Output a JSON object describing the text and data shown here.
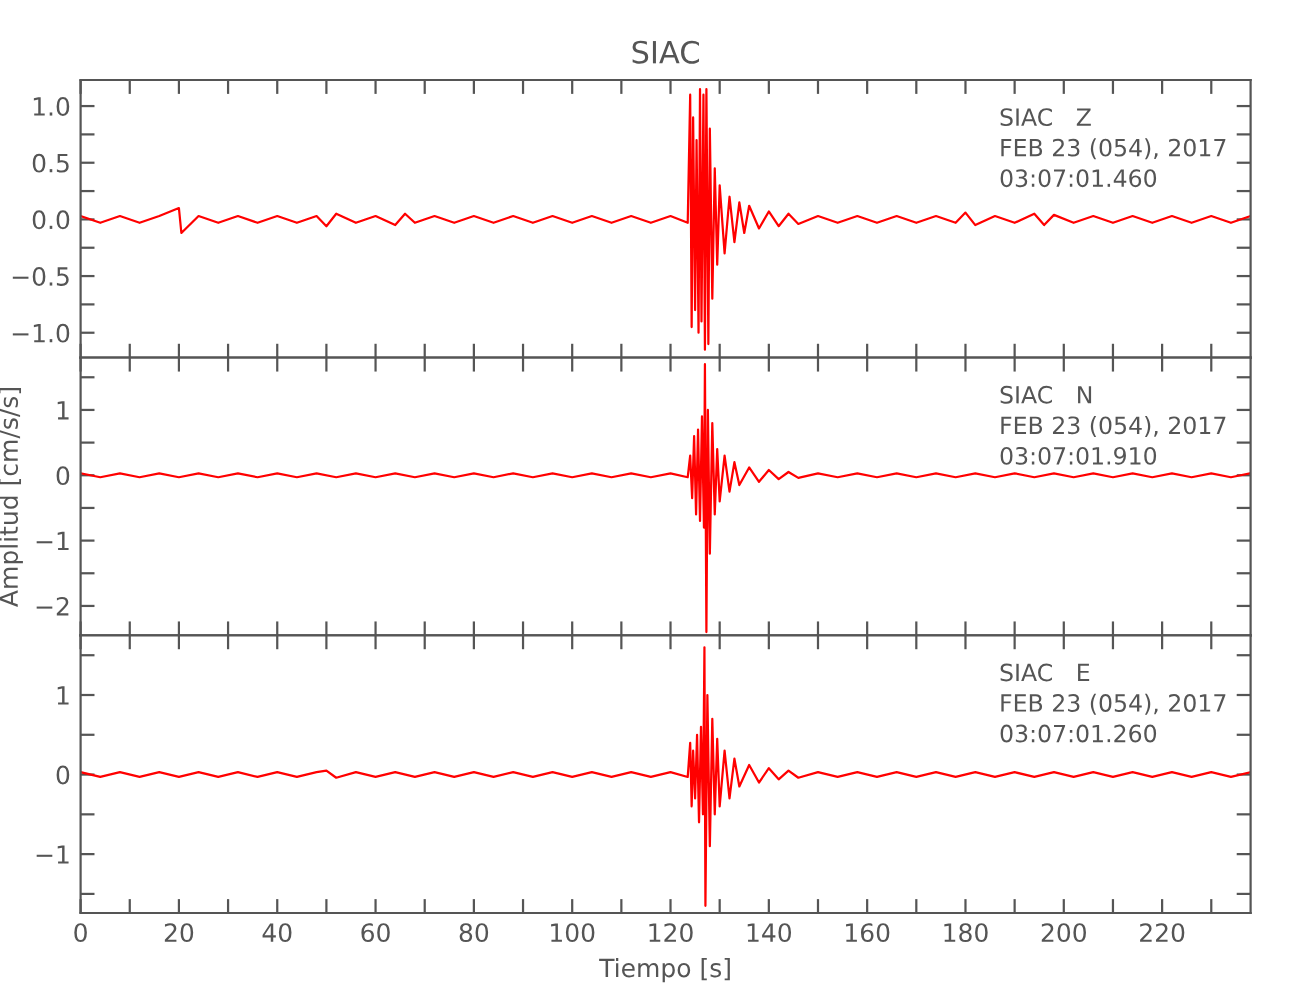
{
  "chart_data": [
    {
      "type": "line",
      "title": "SIAC",
      "color": "#ff0000",
      "tick_labels": "y",
      "grid": false,
      "annotations": [
        "SIAC   Z",
        "FEB 23 (054), 2017",
        "03:07:01.460"
      ],
      "xlim": [
        0,
        238
      ],
      "ylim": [
        -1.22,
        1.23
      ],
      "xticks": [
        0,
        {
          "value": 10,
          "label": null
        },
        20,
        {
          "value": 30,
          "label": null
        },
        40,
        {
          "value": 50,
          "label": null
        },
        60,
        {
          "value": 70,
          "label": null
        },
        80,
        {
          "value": 90,
          "label": null
        },
        100,
        {
          "value": 110,
          "label": null
        },
        120,
        {
          "value": 130,
          "label": null
        },
        140,
        {
          "value": 150,
          "label": null
        },
        160,
        {
          "value": 170,
          "label": null
        },
        180,
        {
          "value": 190,
          "label": null
        },
        200,
        {
          "value": 210,
          "label": null
        },
        220,
        {
          "value": 230,
          "label": null
        }
      ],
      "yticks": [
        {
          "value": -1.0,
          "label": "−1.0"
        },
        {
          "value": -0.75,
          "label": null
        },
        {
          "value": -0.5,
          "label": "−0.5"
        },
        {
          "value": -0.25,
          "label": null
        },
        {
          "value": 0,
          "label": "0.0"
        },
        {
          "value": 0.25,
          "label": null
        },
        {
          "value": 0.5,
          "label": "0.5"
        },
        {
          "value": 0.75,
          "label": null
        },
        {
          "value": 1.0,
          "label": "1.0"
        }
      ],
      "x": [
        0,
        4,
        8,
        12,
        16,
        20,
        20.5,
        24,
        28,
        32,
        36,
        40,
        44,
        48,
        50,
        52,
        56,
        60,
        64,
        66,
        68,
        72,
        76,
        80,
        84,
        88,
        92,
        96,
        100,
        104,
        108,
        112,
        116,
        120,
        123.5,
        124,
        124.3,
        124.6,
        125,
        125.3,
        125.7,
        126,
        126.3,
        126.7,
        127,
        127.3,
        127.7,
        128,
        128.5,
        129,
        129.5,
        130,
        131,
        132,
        133,
        134,
        135,
        136,
        138,
        140,
        142,
        144,
        146,
        150,
        154,
        158,
        162,
        166,
        170,
        174,
        178,
        180,
        182,
        186,
        190,
        194,
        196,
        198,
        202,
        206,
        210,
        214,
        218,
        222,
        226,
        230,
        234,
        238
      ],
      "values": [
        0.03,
        -0.03,
        0.03,
        -0.03,
        0.03,
        0.1,
        -0.12,
        0.03,
        -0.03,
        0.03,
        -0.03,
        0.03,
        -0.03,
        0.03,
        -0.06,
        0.05,
        -0.03,
        0.03,
        -0.05,
        0.05,
        -0.03,
        0.03,
        -0.03,
        0.03,
        -0.03,
        0.03,
        -0.03,
        0.03,
        -0.03,
        0.03,
        -0.03,
        0.03,
        -0.03,
        0.03,
        -0.03,
        1.1,
        -0.95,
        0.9,
        -0.8,
        0.7,
        -1.0,
        1.15,
        -0.9,
        1.1,
        -1.15,
        1.15,
        -1.1,
        0.8,
        -0.7,
        0.45,
        -0.4,
        0.3,
        -0.3,
        0.2,
        -0.2,
        0.15,
        -0.12,
        0.12,
        -0.08,
        0.07,
        -0.06,
        0.05,
        -0.04,
        0.03,
        -0.03,
        0.03,
        -0.03,
        0.03,
        -0.03,
        0.03,
        -0.03,
        0.06,
        -0.05,
        0.03,
        -0.03,
        0.05,
        -0.05,
        0.04,
        -0.03,
        0.03,
        -0.03,
        0.03,
        -0.03,
        0.03,
        -0.03,
        0.03,
        -0.03,
        0.03
      ]
    },
    {
      "type": "line",
      "ylabel": "Amplitud [cm/s/s]",
      "color": "#ff0000",
      "tick_labels": "y",
      "grid": false,
      "annotations": [
        "SIAC   N",
        "FEB 23 (054), 2017",
        "03:07:01.910"
      ],
      "xlim": [
        0,
        238
      ],
      "ylim": [
        -2.45,
        1.8
      ],
      "xticks": [
        0,
        {
          "value": 10,
          "label": null
        },
        20,
        {
          "value": 30,
          "label": null
        },
        40,
        {
          "value": 50,
          "label": null
        },
        60,
        {
          "value": 70,
          "label": null
        },
        80,
        {
          "value": 90,
          "label": null
        },
        100,
        {
          "value": 110,
          "label": null
        },
        120,
        {
          "value": 130,
          "label": null
        },
        140,
        {
          "value": 150,
          "label": null
        },
        160,
        {
          "value": 170,
          "label": null
        },
        180,
        {
          "value": 190,
          "label": null
        },
        200,
        {
          "value": 210,
          "label": null
        },
        220,
        {
          "value": 230,
          "label": null
        }
      ],
      "yticks": [
        {
          "value": -2,
          "label": "−2"
        },
        {
          "value": -1.5,
          "label": null
        },
        {
          "value": -1,
          "label": "−1"
        },
        {
          "value": -0.5,
          "label": null
        },
        0,
        {
          "value": 0.5,
          "label": null
        },
        1,
        {
          "value": 1.5,
          "label": null
        }
      ],
      "x": [
        0,
        4,
        8,
        12,
        16,
        20,
        24,
        28,
        32,
        36,
        40,
        44,
        48,
        52,
        56,
        60,
        64,
        68,
        72,
        76,
        80,
        84,
        88,
        92,
        96,
        100,
        104,
        108,
        112,
        116,
        120,
        123.5,
        124,
        124.4,
        124.8,
        125.2,
        125.6,
        126,
        126.4,
        126.8,
        127,
        127.3,
        127.6,
        128,
        128.5,
        129,
        129.5,
        130,
        131,
        132,
        133,
        134,
        136,
        138,
        140,
        142,
        144,
        146,
        150,
        154,
        158,
        162,
        166,
        170,
        174,
        178,
        182,
        186,
        190,
        194,
        198,
        202,
        206,
        210,
        214,
        218,
        222,
        226,
        230,
        234,
        238
      ],
      "values": [
        0.03,
        -0.03,
        0.03,
        -0.03,
        0.03,
        -0.03,
        0.03,
        -0.03,
        0.03,
        -0.03,
        0.03,
        -0.03,
        0.03,
        -0.03,
        0.03,
        -0.03,
        0.03,
        -0.03,
        0.03,
        -0.03,
        0.03,
        -0.03,
        0.03,
        -0.03,
        0.03,
        -0.03,
        0.03,
        -0.03,
        0.03,
        -0.03,
        0.03,
        -0.03,
        0.3,
        -0.35,
        0.6,
        -0.6,
        0.7,
        -0.7,
        0.9,
        -0.8,
        1.7,
        -2.4,
        1.0,
        -1.2,
        0.8,
        -0.6,
        0.4,
        -0.4,
        0.3,
        -0.25,
        0.2,
        -0.15,
        0.12,
        -0.1,
        0.08,
        -0.06,
        0.05,
        -0.04,
        0.03,
        -0.03,
        0.03,
        -0.03,
        0.03,
        -0.03,
        0.03,
        -0.03,
        0.03,
        -0.03,
        0.03,
        -0.03,
        0.03,
        -0.03,
        0.03,
        -0.03,
        0.03,
        -0.03,
        0.03,
        -0.03,
        0.03,
        -0.03,
        0.03
      ]
    },
    {
      "type": "line",
      "xlabel": "Tiempo [s]",
      "color": "#ff0000",
      "grid": false,
      "annotations": [
        "SIAC   E",
        "FEB 23 (054), 2017",
        "03:07:01.260"
      ],
      "xlim": [
        0,
        238
      ],
      "ylim": [
        -1.74,
        1.75
      ],
      "xticks": [
        0,
        {
          "value": 10,
          "label": null
        },
        20,
        {
          "value": 30,
          "label": null
        },
        40,
        {
          "value": 50,
          "label": null
        },
        60,
        {
          "value": 70,
          "label": null
        },
        80,
        {
          "value": 90,
          "label": null
        },
        100,
        {
          "value": 110,
          "label": null
        },
        120,
        {
          "value": 130,
          "label": null
        },
        140,
        {
          "value": 150,
          "label": null
        },
        160,
        {
          "value": 170,
          "label": null
        },
        180,
        {
          "value": 190,
          "label": null
        },
        200,
        {
          "value": 210,
          "label": null
        },
        220,
        {
          "value": 230,
          "label": null
        }
      ],
      "yticks": [
        {
          "value": -1.5,
          "label": null
        },
        {
          "value": -1,
          "label": "−1"
        },
        {
          "value": -0.5,
          "label": null
        },
        0,
        {
          "value": 0.5,
          "label": null
        },
        1,
        {
          "value": 1.5,
          "label": null
        }
      ],
      "x": [
        0,
        4,
        8,
        12,
        16,
        20,
        24,
        28,
        32,
        36,
        40,
        44,
        48,
        50,
        52,
        56,
        60,
        64,
        68,
        72,
        76,
        80,
        84,
        88,
        92,
        96,
        100,
        104,
        108,
        112,
        116,
        120,
        123.5,
        124,
        124.3,
        124.6,
        125,
        125.4,
        125.8,
        126.2,
        126.6,
        126.9,
        127.1,
        127.5,
        128,
        128.5,
        129,
        129.5,
        130,
        131,
        132,
        133,
        134,
        136,
        138,
        140,
        142,
        144,
        146,
        150,
        154,
        158,
        162,
        166,
        170,
        174,
        178,
        182,
        186,
        190,
        194,
        198,
        202,
        206,
        210,
        214,
        218,
        222,
        226,
        230,
        234,
        238
      ],
      "values": [
        0.03,
        -0.03,
        0.03,
        -0.03,
        0.03,
        -0.03,
        0.03,
        -0.03,
        0.03,
        -0.03,
        0.03,
        -0.03,
        0.03,
        0.05,
        -0.04,
        0.03,
        -0.03,
        0.03,
        -0.03,
        0.03,
        -0.03,
        0.03,
        -0.03,
        0.03,
        -0.03,
        0.03,
        -0.03,
        0.03,
        -0.03,
        0.03,
        -0.03,
        0.03,
        -0.03,
        0.4,
        -0.4,
        0.3,
        -0.3,
        0.5,
        -0.6,
        0.6,
        -0.5,
        1.6,
        -1.65,
        1.0,
        -0.9,
        0.7,
        -0.5,
        0.45,
        -0.4,
        0.3,
        -0.3,
        0.2,
        -0.15,
        0.12,
        -0.1,
        0.08,
        -0.06,
        0.05,
        -0.04,
        0.03,
        -0.03,
        0.03,
        -0.03,
        0.03,
        -0.03,
        0.03,
        -0.03,
        0.03,
        -0.03,
        0.03,
        -0.03,
        0.03,
        -0.03,
        0.03,
        -0.03,
        0.03,
        -0.03,
        0.03,
        -0.03,
        0.03,
        -0.03,
        0.03
      ]
    }
  ]
}
